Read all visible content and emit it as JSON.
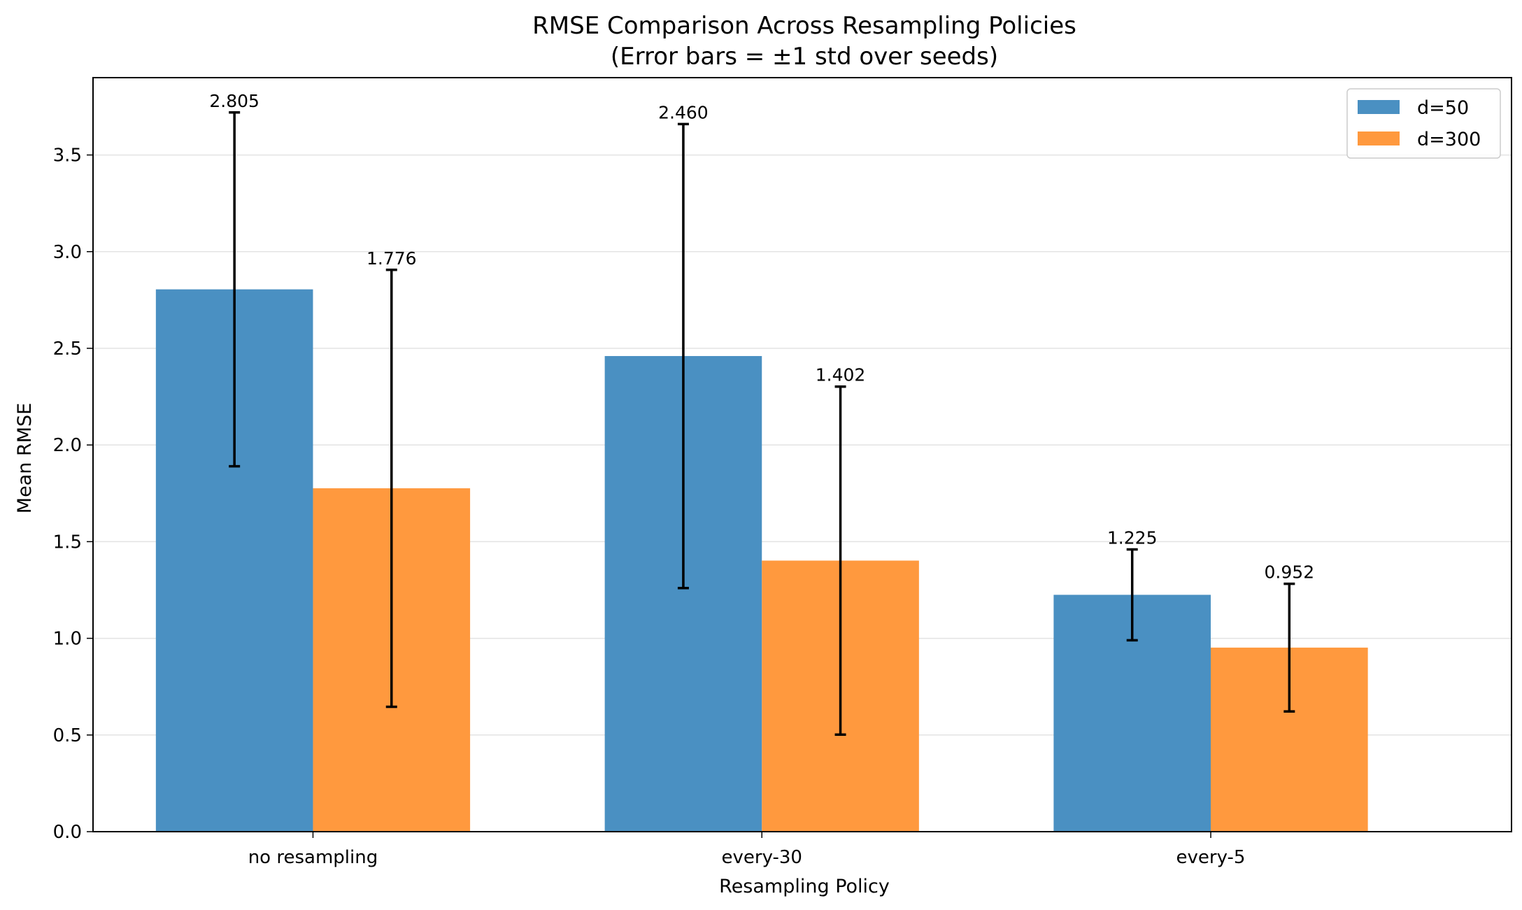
{
  "chart_data": {
    "type": "bar",
    "title": "RMSE Comparison Across Resampling Policies",
    "subtitle": "(Error bars = ±1 std over seeds)",
    "xlabel": "Resampling Policy",
    "ylabel": "Mean RMSE",
    "categories": [
      "no resampling",
      "every-30",
      "every-5"
    ],
    "ylim": [
      0,
      3.9
    ],
    "yticks": [
      0.0,
      0.5,
      1.0,
      1.5,
      2.0,
      2.5,
      3.0,
      3.5
    ],
    "ytick_labels": [
      "0.0",
      "0.5",
      "1.0",
      "1.5",
      "2.0",
      "2.5",
      "3.0",
      "3.5"
    ],
    "grid": "horizontal",
    "legend_position": "top-right",
    "series": [
      {
        "name": "d=50",
        "color": "#4a90c2",
        "values": [
          2.805,
          2.46,
          1.225
        ],
        "errors": [
          0.915,
          1.2,
          0.235
        ],
        "labels": [
          "2.805",
          "2.460",
          "1.225"
        ]
      },
      {
        "name": "d=300",
        "color": "#ff993e",
        "values": [
          1.776,
          1.402,
          0.952
        ],
        "errors": [
          1.13,
          0.9,
          0.33
        ],
        "labels": [
          "1.776",
          "1.402",
          "0.952"
        ]
      }
    ]
  }
}
